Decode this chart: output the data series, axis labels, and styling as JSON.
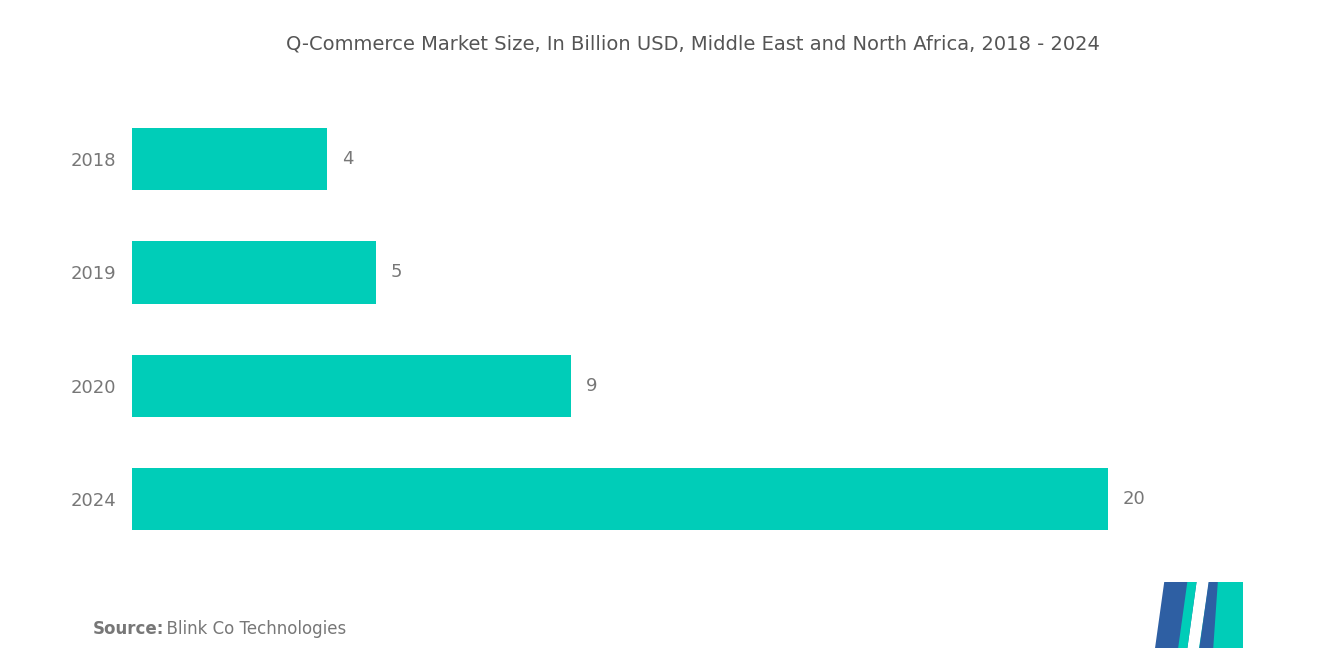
{
  "title": "Q-Commerce Market Size, In Billion USD, Middle East and North Africa, 2018 - 2024",
  "categories": [
    "2018",
    "2019",
    "2020",
    "2024"
  ],
  "values": [
    4,
    5,
    9,
    20
  ],
  "bar_color": "#00CDB8",
  "label_color": "#777777",
  "title_color": "#555555",
  "background_color": "#FFFFFF",
  "source_bold": "Source:",
  "source_rest": "  Blink Co Technologies",
  "xlim": [
    0,
    23
  ],
  "bar_height": 0.55,
  "title_fontsize": 14,
  "label_fontsize": 13,
  "ytick_fontsize": 13,
  "source_fontsize": 12,
  "logo_dark_blue": "#2E5FA3",
  "logo_teal": "#00CDB8"
}
